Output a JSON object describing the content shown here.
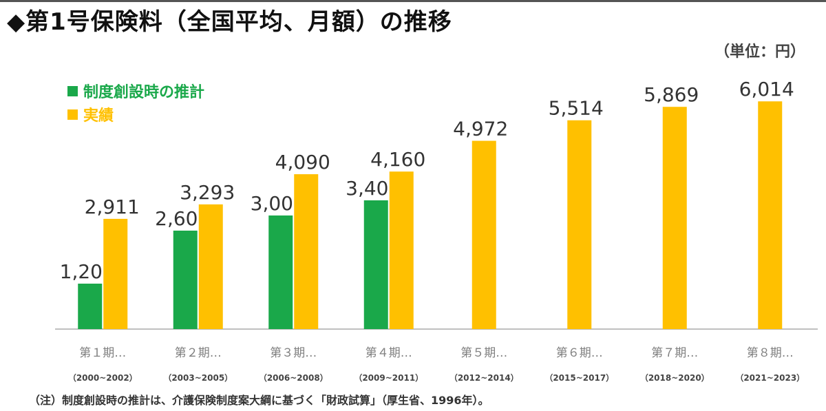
{
  "title": "◆第1号保険料（全国平均、月額）の推移",
  "unit": "（単位：円）",
  "note": "（注）制度創設時の推計は、介護保険制度案大綱に基づく「財政試算」（厚生省、1996年）。",
  "colors": {
    "green": "#1aa84a",
    "gold": "#ffc000",
    "axis": "#bfbfbf",
    "label": "#333333",
    "tick": "#7f7f7f"
  },
  "chart_data": {
    "type": "bar",
    "title": "◆第1号保険料（全国平均、月額）の推移",
    "ylabel": "（単位：円）",
    "ylim": [
      0,
      6600
    ],
    "legend_position": "top-left",
    "categories": [
      "第１期…",
      "第２期…",
      "第３期…",
      "第４期…",
      "第５期…",
      "第６期…",
      "第７期…",
      "第８期…"
    ],
    "sublabels": [
      "（2000~2002）",
      "（2003~2005）",
      "（2006~2008）",
      "（2009~2011）",
      "（2012~2014）",
      "（2015~2017）",
      "（2018~2020）",
      "（2021~2023）"
    ],
    "series": [
      {
        "name": "制度創設時の推計",
        "color": "#1aa84a",
        "values": [
          1200,
          2600,
          3000,
          3400,
          null,
          null,
          null,
          null
        ],
        "labels": [
          "1,200",
          "2,600",
          "3,000",
          "3,400",
          "",
          "",
          "",
          ""
        ]
      },
      {
        "name": "実績",
        "color": "#ffc000",
        "values": [
          2911,
          3293,
          4090,
          4160,
          4972,
          5514,
          5869,
          6014
        ],
        "labels": [
          "2,911",
          "3,293",
          "4,090",
          "4,160",
          "4,972",
          "5,514",
          "5,869",
          "6,014"
        ]
      }
    ]
  }
}
